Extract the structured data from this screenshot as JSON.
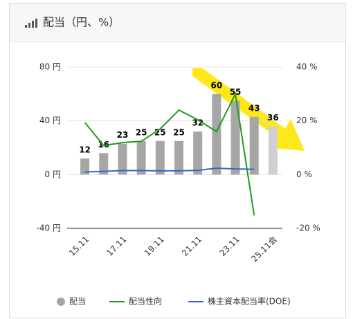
{
  "chart_data": {
    "type": "bar",
    "title": "配当（円、%）",
    "categories": [
      "15.11",
      null,
      "17.11",
      null,
      "19.11",
      null,
      "21.11",
      null,
      "23.11",
      null,
      "25.11会"
    ],
    "series": [
      {
        "name": "配当",
        "type": "bar",
        "colors": [
          "#a6a6a6",
          "#a6a6a6",
          "#a6a6a6",
          "#a6a6a6",
          "#a6a6a6",
          "#a6a6a6",
          "#a6a6a6",
          "#a6a6a6",
          "#a6a6a6",
          "#a6a6a6",
          "#d0d0d0"
        ],
        "values": [
          12,
          16,
          23,
          25,
          25,
          25,
          32,
          60,
          55,
          43,
          36
        ]
      },
      {
        "name": "配当性向",
        "type": "line",
        "axis": "y2",
        "color": "#1e9a1e",
        "values": [
          19.4,
          10.8,
          11.9,
          12.4,
          17,
          24,
          20.4,
          16,
          30,
          -15.2,
          null
        ]
      },
      {
        "name": "株主資本配当率(DOE)",
        "type": "line",
        "axis": "y2",
        "color": "#3366cc",
        "values": [
          1,
          1.2,
          1.5,
          1.5,
          1.4,
          1.4,
          1.6,
          2.4,
          2.1,
          2.0,
          null
        ]
      }
    ],
    "ylim": [
      -40,
      80
    ],
    "yticks": [
      {
        "value": -40,
        "label": "-40 円"
      },
      {
        "value": 0,
        "label": "0 円"
      },
      {
        "value": 40,
        "label": "40 円"
      },
      {
        "value": 80,
        "label": "80 円"
      }
    ],
    "y2lim": [
      -20,
      40
    ],
    "y2ticks": [
      {
        "value": -20,
        "label": "-20 %"
      },
      {
        "value": 0,
        "label": "0 %"
      },
      {
        "value": 20,
        "label": "20 %"
      },
      {
        "value": 40,
        "label": "40 %"
      }
    ],
    "grid": true
  }
}
